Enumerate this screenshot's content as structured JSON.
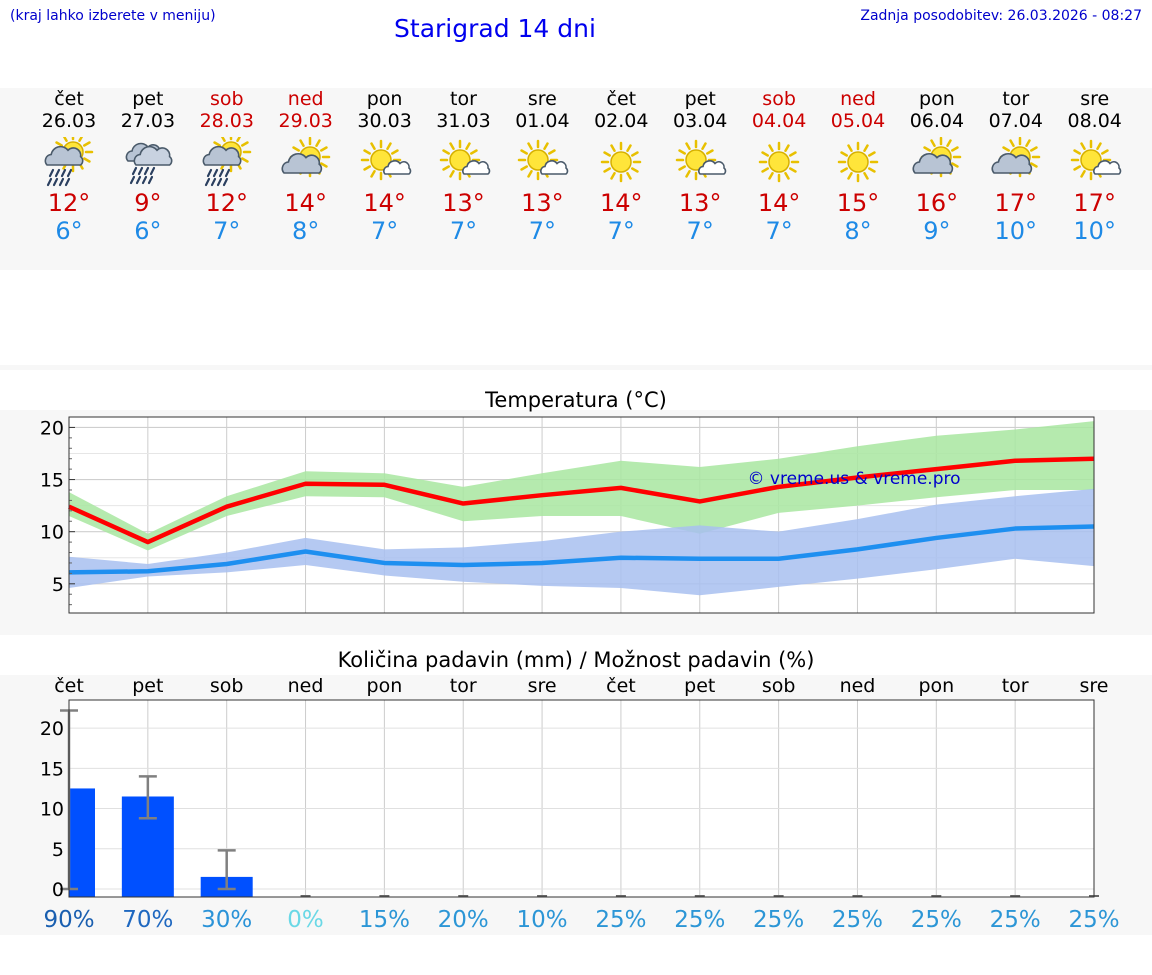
{
  "header": {
    "hint": "(kraj lahko izberete v meniju)",
    "title": "Starigrad 14 dni",
    "updated": "Zadnja posodobitev: 26.03.2026 - 08:27"
  },
  "colors": {
    "max_text": "#cc0000",
    "min_text": "#1e8ae6",
    "max_line": "#ff0000",
    "max_band": "#a8e6a0",
    "min_line": "#1e8ff0",
    "min_band": "#a8c0f0",
    "precip_bar": "#0050ff",
    "error_bar": "#808080",
    "watermark": "#0000cc"
  },
  "forecast": [
    {
      "day": "čet",
      "date": "26.03",
      "weekend": false,
      "icon": "sun-cloud-rain-icon",
      "max": "12°",
      "min": "6°"
    },
    {
      "day": "pet",
      "date": "27.03",
      "weekend": false,
      "icon": "cloud-rain-icon",
      "max": "9°",
      "min": "6°"
    },
    {
      "day": "sob",
      "date": "28.03",
      "weekend": true,
      "icon": "sun-cloud-rain-icon",
      "max": "12°",
      "min": "7°"
    },
    {
      "day": "ned",
      "date": "29.03",
      "weekend": true,
      "icon": "sun-cloud-icon",
      "max": "14°",
      "min": "8°"
    },
    {
      "day": "pon",
      "date": "30.03",
      "weekend": false,
      "icon": "sun-small-cloud-icon",
      "max": "14°",
      "min": "7°"
    },
    {
      "day": "tor",
      "date": "31.03",
      "weekend": false,
      "icon": "sun-small-cloud-icon",
      "max": "13°",
      "min": "7°"
    },
    {
      "day": "sre",
      "date": "01.04",
      "weekend": false,
      "icon": "sun-small-cloud-icon",
      "max": "13°",
      "min": "7°"
    },
    {
      "day": "čet",
      "date": "02.04",
      "weekend": false,
      "icon": "sun-icon",
      "max": "14°",
      "min": "7°"
    },
    {
      "day": "pet",
      "date": "03.04",
      "weekend": false,
      "icon": "sun-small-cloud-icon",
      "max": "13°",
      "min": "7°"
    },
    {
      "day": "sob",
      "date": "04.04",
      "weekend": true,
      "icon": "sun-icon",
      "max": "14°",
      "min": "7°"
    },
    {
      "day": "ned",
      "date": "05.04",
      "weekend": true,
      "icon": "sun-icon",
      "max": "15°",
      "min": "8°"
    },
    {
      "day": "pon",
      "date": "06.04",
      "weekend": false,
      "icon": "sun-cloud-icon",
      "max": "16°",
      "min": "9°"
    },
    {
      "day": "tor",
      "date": "07.04",
      "weekend": false,
      "icon": "sun-cloud-icon",
      "max": "17°",
      "min": "10°"
    },
    {
      "day": "sre",
      "date": "08.04",
      "weekend": false,
      "icon": "sun-small-cloud-icon",
      "max": "17°",
      "min": "10°"
    }
  ],
  "chart_data": [
    {
      "type": "line",
      "title": "Temperatura (°C)",
      "watermark": "© vreme.us & vreme.pro",
      "x": [
        0,
        1,
        2,
        3,
        4,
        5,
        6,
        7,
        8,
        9,
        10,
        11,
        12,
        13
      ],
      "ylim": [
        2.2,
        21
      ],
      "yticks": [
        5,
        10,
        15,
        20
      ],
      "grid": true,
      "series": [
        {
          "name": "max",
          "values": [
            12.4,
            9.0,
            12.4,
            14.6,
            14.5,
            12.7,
            13.5,
            14.2,
            12.9,
            14.3,
            15.2,
            16.0,
            16.8,
            17.0
          ]
        },
        {
          "name": "max_range",
          "lower": [
            11.5,
            8.2,
            11.5,
            13.4,
            13.3,
            11.0,
            11.5,
            11.5,
            9.8,
            11.8,
            12.5,
            13.3,
            14.0,
            14.0
          ],
          "upper": [
            13.8,
            9.8,
            13.4,
            15.8,
            15.6,
            14.3,
            15.6,
            16.8,
            16.2,
            17.0,
            18.2,
            19.2,
            19.8,
            20.6
          ]
        },
        {
          "name": "min",
          "values": [
            6.1,
            6.2,
            6.9,
            8.1,
            7.0,
            6.8,
            7.0,
            7.5,
            7.4,
            7.4,
            8.3,
            9.4,
            10.3,
            10.5
          ]
        },
        {
          "name": "min_range",
          "lower": [
            4.6,
            5.7,
            6.1,
            6.8,
            5.8,
            5.2,
            4.8,
            4.6,
            3.9,
            4.7,
            5.5,
            6.4,
            7.4,
            6.7
          ],
          "upper": [
            7.6,
            6.9,
            8.0,
            9.4,
            8.3,
            8.5,
            9.1,
            10.0,
            10.6,
            10.0,
            11.2,
            12.6,
            13.4,
            14.1
          ]
        }
      ]
    },
    {
      "type": "bar",
      "title": "Količina padavin (mm) / Možnost padavin (%)",
      "categories": [
        "čet",
        "pet",
        "sob",
        "ned",
        "pon",
        "tor",
        "sre",
        "čet",
        "pet",
        "sob",
        "ned",
        "pon",
        "tor",
        "sre"
      ],
      "ylim": [
        -1,
        23.5
      ],
      "yticks": [
        0,
        5,
        10,
        15,
        20
      ],
      "grid": true,
      "values": [
        12.5,
        11.5,
        1.5,
        0,
        0,
        0,
        0,
        0,
        0,
        0,
        0,
        0,
        0,
        0
      ],
      "error_low": [
        0,
        8.8,
        0,
        0,
        0,
        0,
        0,
        0,
        0,
        0,
        0,
        0,
        0,
        0
      ],
      "error_high": [
        22.2,
        14.0,
        4.8,
        0,
        0,
        0,
        0,
        0,
        0,
        0,
        0,
        0,
        0,
        0
      ],
      "probability_labels": [
        "90%",
        "70%",
        "30%",
        "0%",
        "15%",
        "20%",
        "10%",
        "25%",
        "25%",
        "25%",
        "25%",
        "25%",
        "25%",
        "25%"
      ],
      "probability_colors": [
        "#1a5fb0",
        "#1f68c0",
        "#2b93d8",
        "#6ad8e6",
        "#2c96d6",
        "#2c96d6",
        "#2c96d6",
        "#2c96d6",
        "#2c96d6",
        "#2c96d6",
        "#2c96d6",
        "#2c96d6",
        "#2c96d6",
        "#2c96d6"
      ]
    }
  ]
}
